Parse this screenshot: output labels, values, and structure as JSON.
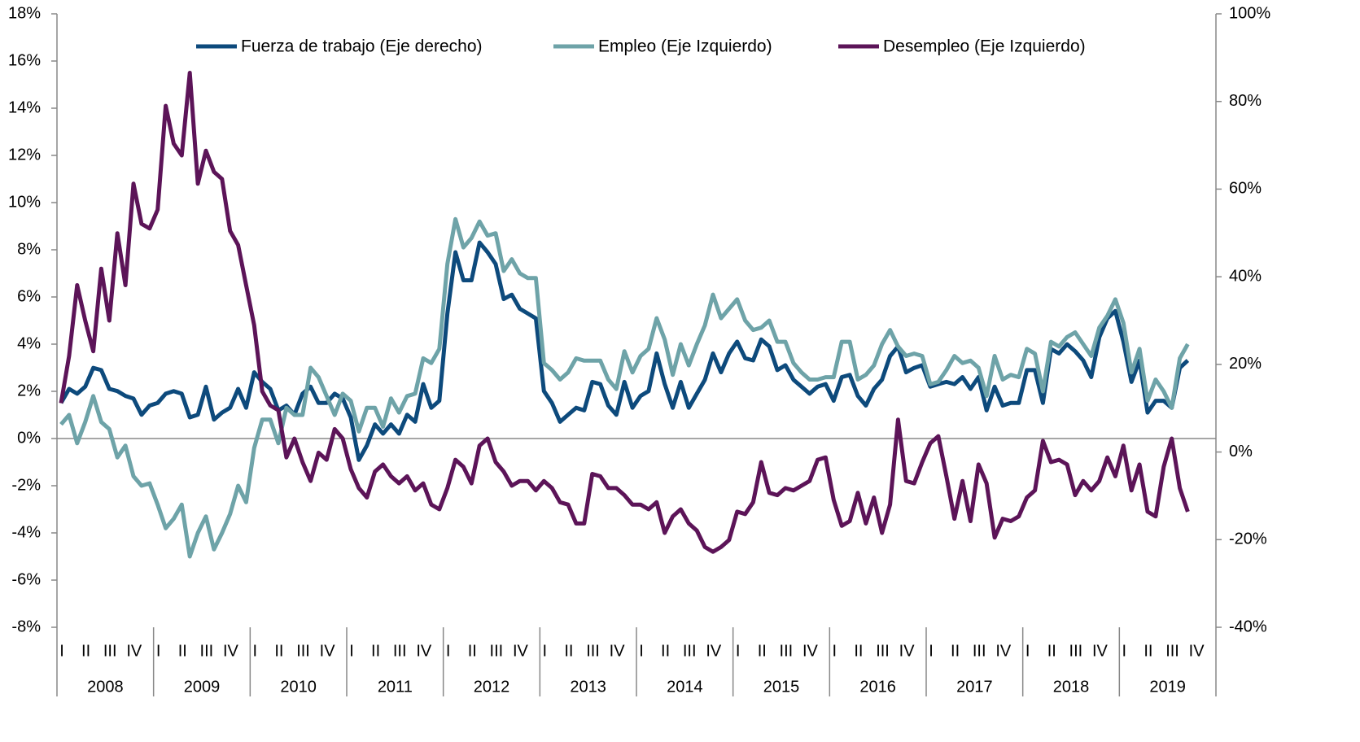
{
  "chart_data": {
    "type": "line",
    "x_axis": {
      "years": [
        "2008",
        "2009",
        "2010",
        "2011",
        "2012",
        "2013",
        "2014",
        "2015",
        "2016",
        "2017",
        "2018",
        "2019"
      ],
      "quarters": [
        "I",
        "II",
        "III",
        "IV"
      ]
    },
    "ylim": [
      -8,
      18
    ],
    "yticks": [
      {
        "value": -8,
        "label": "-8%"
      },
      {
        "value": -6,
        "label": "-6%"
      },
      {
        "value": -4,
        "label": "-4%"
      },
      {
        "value": -2,
        "label": "-2%"
      },
      {
        "value": 0,
        "label": "0%"
      },
      {
        "value": 2,
        "label": "2%"
      },
      {
        "value": 4,
        "label": "4%"
      },
      {
        "value": 6,
        "label": "6%"
      },
      {
        "value": 8,
        "label": "8%"
      },
      {
        "value": 10,
        "label": "10%"
      },
      {
        "value": 12,
        "label": "12%"
      },
      {
        "value": 14,
        "label": "14%"
      },
      {
        "value": 16,
        "label": "16%"
      },
      {
        "value": 18,
        "label": "18%"
      }
    ],
    "y2lim": [
      -40,
      100
    ],
    "y2ticks": [
      {
        "value": -40,
        "label": "-40%"
      },
      {
        "value": -20,
        "label": "-20%"
      },
      {
        "value": 0,
        "label": "0%"
      },
      {
        "value": 20,
        "label": "20%"
      },
      {
        "value": 40,
        "label": "40%"
      },
      {
        "value": 60,
        "label": "60%"
      },
      {
        "value": 80,
        "label": "80%"
      },
      {
        "value": 100,
        "label": "100%"
      }
    ],
    "legend": "top",
    "series": [
      {
        "name": "Fuerza de trabajo (Eje derecho)",
        "color": "#0d4a7c",
        "axis": "y2",
        "values": [
          11.2,
          14.4,
          13.3,
          14.9,
          19.2,
          18.7,
          14.4,
          13.9,
          12.8,
          12.2,
          8.5,
          10.6,
          11.2,
          13.3,
          13.9,
          13.3,
          7.9,
          8.5,
          14.9,
          7.4,
          9.0,
          10.1,
          14.4,
          10.1,
          18.2,
          16.0,
          14.4,
          9.5,
          10.6,
          8.5,
          13.3,
          14.9,
          11.2,
          11.2,
          13.3,
          12.2,
          7.9,
          -1.8,
          1.5,
          6.3,
          4.2,
          6.3,
          4.2,
          8.5,
          6.9,
          15.5,
          10.1,
          11.7,
          31.6,
          45.6,
          39.2,
          39.2,
          47.8,
          45.6,
          42.9,
          34.9,
          35.9,
          32.7,
          31.6,
          30.5,
          13.9,
          11.2,
          6.9,
          8.5,
          10.1,
          9.5,
          16.0,
          15.5,
          10.6,
          8.5,
          16.0,
          10.1,
          12.8,
          13.9,
          22.5,
          15.5,
          10.1,
          16.0,
          10.1,
          13.3,
          16.5,
          22.5,
          18.2,
          22.5,
          25.2,
          21.4,
          20.9,
          25.7,
          24.1,
          18.7,
          19.8,
          16.5,
          14.9,
          13.3,
          14.9,
          15.5,
          11.7,
          17.1,
          17.6,
          12.8,
          10.6,
          14.4,
          16.5,
          21.9,
          24.1,
          18.2,
          19.2,
          19.8,
          14.9,
          15.5,
          16.0,
          15.5,
          17.1,
          14.4,
          17.1,
          9.5,
          14.9,
          10.6,
          11.2,
          11.2,
          18.7,
          18.7,
          11.2,
          23.5,
          22.5,
          24.6,
          23.0,
          20.9,
          17.1,
          26.2,
          30.5,
          32.2,
          25.2,
          16.0,
          20.9,
          9.0,
          11.7,
          11.7,
          10.1,
          19.2,
          20.9
        ]
      },
      {
        "name": "Empleo (Eje Izquierdo)",
        "color": "#6ea3a8",
        "values": [
          0.6,
          1.0,
          -0.2,
          0.7,
          1.8,
          0.7,
          0.4,
          -0.8,
          -0.3,
          -1.6,
          -2.0,
          -1.9,
          -2.8,
          -3.8,
          -3.4,
          -2.8,
          -5.0,
          -4.0,
          -3.3,
          -4.7,
          -4.0,
          -3.2,
          -2.0,
          -2.7,
          -0.4,
          0.8,
          0.8,
          -0.2,
          1.3,
          1.0,
          1.0,
          3.0,
          2.6,
          1.8,
          1.0,
          1.9,
          1.6,
          0.3,
          1.3,
          1.3,
          0.5,
          1.7,
          1.1,
          1.8,
          1.9,
          3.4,
          3.2,
          3.8,
          7.4,
          9.3,
          8.1,
          8.5,
          9.2,
          8.6,
          8.7,
          7.1,
          7.6,
          7.0,
          6.8,
          6.8,
          3.2,
          2.9,
          2.5,
          2.8,
          3.4,
          3.3,
          3.3,
          3.3,
          2.5,
          2.1,
          3.7,
          2.8,
          3.5,
          3.8,
          5.1,
          4.2,
          2.7,
          4.0,
          3.1,
          4.0,
          4.8,
          6.1,
          5.1,
          5.5,
          5.9,
          5.0,
          4.6,
          4.7,
          5.0,
          4.1,
          4.1,
          3.2,
          2.8,
          2.5,
          2.5,
          2.6,
          2.6,
          4.1,
          4.1,
          2.5,
          2.7,
          3.1,
          4.0,
          4.6,
          3.9,
          3.5,
          3.6,
          3.5,
          2.3,
          2.4,
          2.9,
          3.5,
          3.2,
          3.3,
          3.0,
          1.8,
          3.5,
          2.5,
          2.7,
          2.6,
          3.8,
          3.6,
          2.0,
          4.1,
          3.9,
          4.3,
          4.5,
          4.0,
          3.5,
          4.7,
          5.2,
          5.9,
          4.9,
          2.8,
          3.8,
          1.6,
          2.5,
          2.0,
          1.3,
          3.4,
          4.0
        ]
      },
      {
        "name": "Desempleo (Eje Izquierdo)",
        "color": "#5c1458",
        "values": [
          1.5,
          3.5,
          6.5,
          5.0,
          3.7,
          7.2,
          5.0,
          8.7,
          6.5,
          10.8,
          9.1,
          8.9,
          9.7,
          14.1,
          12.5,
          12.0,
          15.5,
          10.8,
          12.2,
          11.3,
          11.0,
          8.8,
          8.2,
          6.5,
          4.8,
          2.0,
          1.4,
          1.2,
          -0.8,
          0.0,
          -1.0,
          -1.8,
          -0.6,
          -0.9,
          0.4,
          0.0,
          -1.3,
          -2.1,
          -2.5,
          -1.4,
          -1.1,
          -1.6,
          -1.9,
          -1.6,
          -2.2,
          -1.9,
          -2.8,
          -3.0,
          -2.1,
          -0.9,
          -1.2,
          -1.9,
          -0.3,
          0.0,
          -1.0,
          -1.4,
          -2.0,
          -1.8,
          -1.8,
          -2.2,
          -1.8,
          -2.1,
          -2.7,
          -2.8,
          -3.6,
          -3.6,
          -1.5,
          -1.6,
          -2.1,
          -2.1,
          -2.4,
          -2.8,
          -2.8,
          -3.0,
          -2.7,
          -4.0,
          -3.3,
          -3.0,
          -3.6,
          -3.9,
          -4.6,
          -4.8,
          -4.6,
          -4.3,
          -3.1,
          -3.2,
          -2.7,
          -1.0,
          -2.3,
          -2.4,
          -2.1,
          -2.2,
          -2.0,
          -1.8,
          -0.9,
          -0.8,
          -2.6,
          -3.7,
          -3.5,
          -2.3,
          -3.6,
          -2.5,
          -4.0,
          -2.8,
          0.8,
          -1.8,
          -1.9,
          -1.0,
          -0.2,
          0.1,
          -1.6,
          -3.4,
          -1.8,
          -3.5,
          -1.1,
          -1.9,
          -4.2,
          -3.4,
          -3.5,
          -3.3,
          -2.5,
          -2.2,
          -0.1,
          -1.0,
          -0.9,
          -1.1,
          -2.4,
          -1.8,
          -2.2,
          -1.8,
          -0.8,
          -1.6,
          -0.3,
          -2.2,
          -1.1,
          -3.1,
          -3.3,
          -1.2,
          0.0,
          -2.1,
          -3.1
        ]
      }
    ]
  }
}
